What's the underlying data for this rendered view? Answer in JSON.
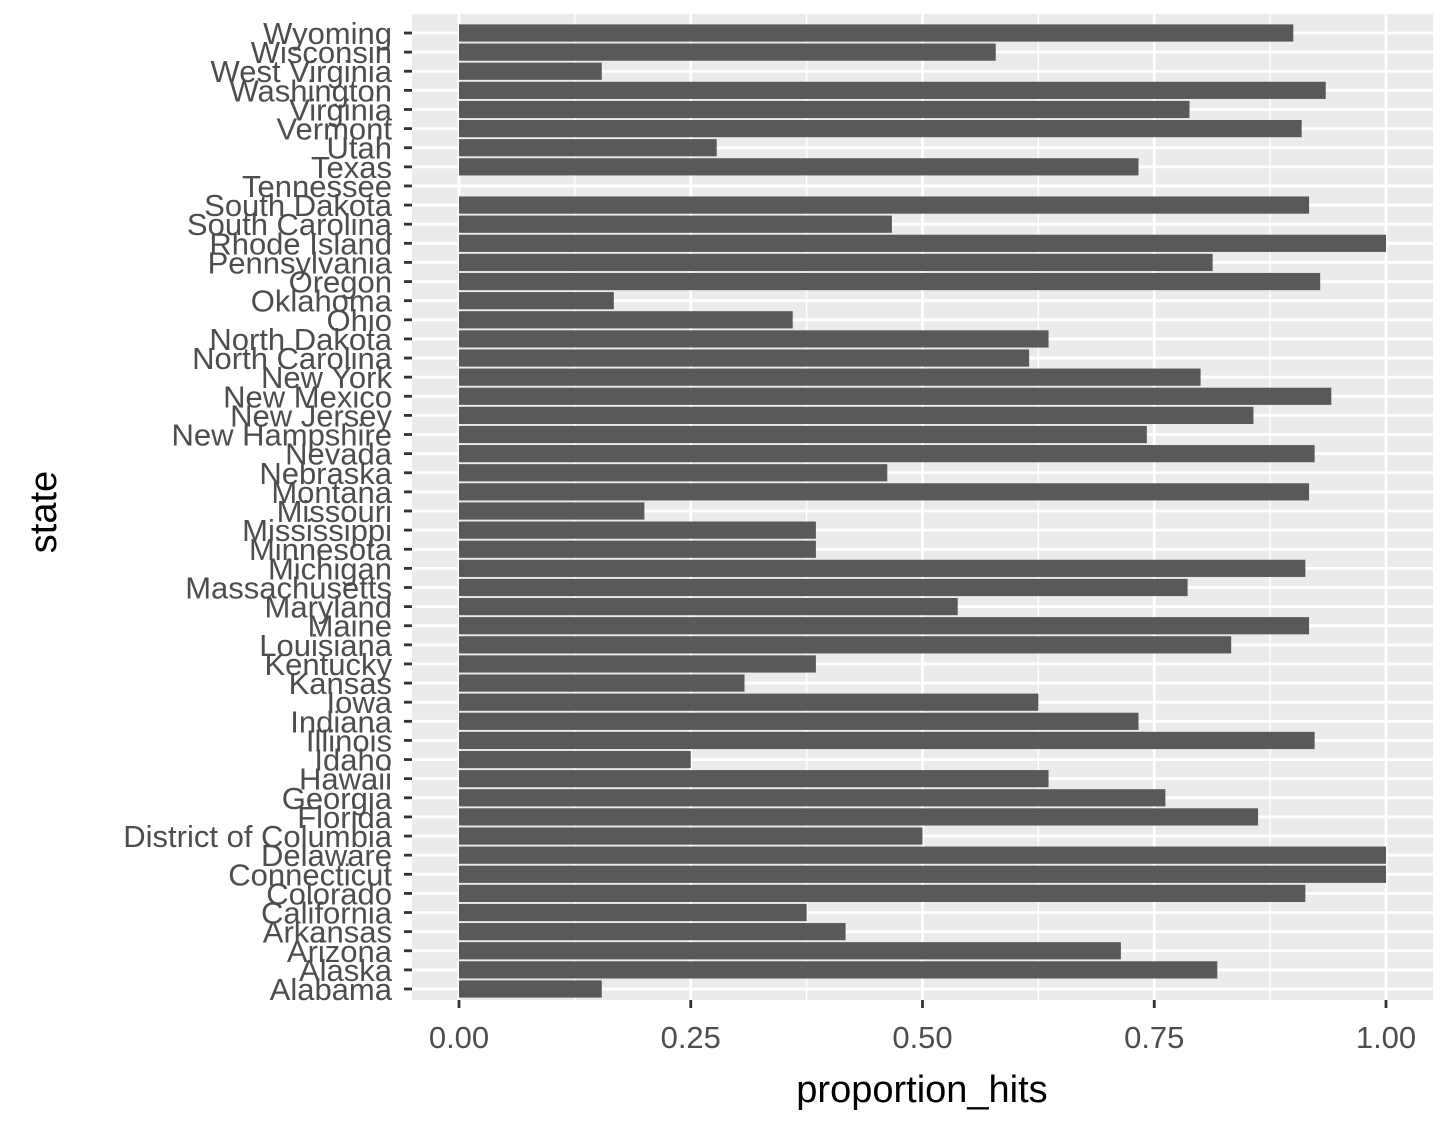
{
  "colors": {
    "panel_background": "#ebebeb",
    "grid": "#ffffff",
    "bar_fill": "#595959",
    "tick_text": "#4d4d4d",
    "axis_title_text": "#000000"
  },
  "chart_data": {
    "type": "bar",
    "orientation": "horizontal",
    "title": "",
    "xlabel": "proportion_hits",
    "ylabel": "state",
    "xlim": [
      0,
      1
    ],
    "x_ticks": [
      0,
      0.25,
      0.5,
      0.75,
      1
    ],
    "x_tick_labels": [
      "0.00",
      "0.25",
      "0.50",
      "0.75",
      "1.00"
    ],
    "grid": true,
    "legend": "none",
    "categories": [
      "Alabama",
      "Alaska",
      "Arizona",
      "Arkansas",
      "California",
      "Colorado",
      "Connecticut",
      "Delaware",
      "District of Columbia",
      "Florida",
      "Georgia",
      "Hawaii",
      "Idaho",
      "Illinois",
      "Indiana",
      "Iowa",
      "Kansas",
      "Kentucky",
      "Louisiana",
      "Maine",
      "Maryland",
      "Massachusetts",
      "Michigan",
      "Minnesota",
      "Mississippi",
      "Missouri",
      "Montana",
      "Nebraska",
      "Nevada",
      "New Hampshire",
      "New Jersey",
      "New Mexico",
      "New York",
      "North Carolina",
      "North Dakota",
      "Ohio",
      "Oklahoma",
      "Oregon",
      "Pennsylvania",
      "Rhode Island",
      "South Carolina",
      "South Dakota",
      "Tennessee",
      "Texas",
      "Utah",
      "Vermont",
      "Virginia",
      "Washington",
      "West Virginia",
      "Wisconsin",
      "Wyoming"
    ],
    "values": [
      0.154,
      0.818,
      0.714,
      0.417,
      0.375,
      0.913,
      1.0,
      1.0,
      0.5,
      0.862,
      0.762,
      0.636,
      0.25,
      0.923,
      0.733,
      0.625,
      0.308,
      0.385,
      0.833,
      0.917,
      0.538,
      0.786,
      0.913,
      0.385,
      0.385,
      0.2,
      0.917,
      0.462,
      0.923,
      0.742,
      0.857,
      0.941,
      0.8,
      0.615,
      0.636,
      0.36,
      0.167,
      0.929,
      0.813,
      1.0,
      0.467,
      0.917,
      0.0,
      0.733,
      0.278,
      0.909,
      0.788,
      0.935,
      0.154,
      0.579,
      0.9
    ]
  }
}
